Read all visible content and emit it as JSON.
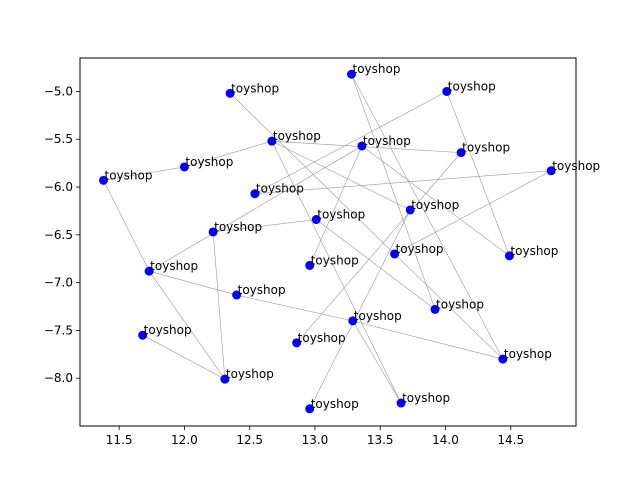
{
  "chart_data": {
    "type": "scatter",
    "title": "",
    "xlabel": "",
    "ylabel": "",
    "xlim": [
      11.2,
      15.0
    ],
    "ylim": [
      -8.5,
      -4.65
    ],
    "xticks": [
      11.5,
      12.0,
      12.5,
      13.0,
      13.5,
      14.0,
      14.5
    ],
    "xtick_labels": [
      "11.5",
      "12.0",
      "12.5",
      "13.0",
      "13.5",
      "14.0",
      "14.5"
    ],
    "yticks": [
      -8.0,
      -7.5,
      -7.0,
      -6.5,
      -6.0,
      -5.5,
      -5.0
    ],
    "ytick_labels": [
      "−8.0",
      "−7.5",
      "−7.0",
      "−6.5",
      "−6.0",
      "−5.5",
      "−5.0"
    ],
    "grid": false,
    "marker_color": "#0000ff",
    "edge_color": "#999999",
    "points": [
      {
        "x": 13.28,
        "y": -4.82,
        "label": "toyshop"
      },
      {
        "x": 12.35,
        "y": -5.02,
        "label": "toyshop"
      },
      {
        "x": 14.01,
        "y": -5.0,
        "label": "toyshop"
      },
      {
        "x": 12.67,
        "y": -5.52,
        "label": "toyshop"
      },
      {
        "x": 13.36,
        "y": -5.57,
        "label": "toyshop"
      },
      {
        "x": 14.12,
        "y": -5.64,
        "label": "toyshop"
      },
      {
        "x": 11.38,
        "y": -5.93,
        "label": "toyshop"
      },
      {
        "x": 12.0,
        "y": -5.79,
        "label": "toyshop"
      },
      {
        "x": 14.81,
        "y": -5.83,
        "label": "toyshop"
      },
      {
        "x": 12.54,
        "y": -6.07,
        "label": "toyshop"
      },
      {
        "x": 13.73,
        "y": -6.24,
        "label": "toyshop"
      },
      {
        "x": 13.01,
        "y": -6.34,
        "label": "toyshop"
      },
      {
        "x": 12.22,
        "y": -6.47,
        "label": "toyshop"
      },
      {
        "x": 13.61,
        "y": -6.7,
        "label": "toyshop"
      },
      {
        "x": 14.49,
        "y": -6.72,
        "label": "toyshop"
      },
      {
        "x": 12.96,
        "y": -6.82,
        "label": "toyshop"
      },
      {
        "x": 11.73,
        "y": -6.88,
        "label": "toyshop"
      },
      {
        "x": 12.4,
        "y": -7.13,
        "label": "toyshop"
      },
      {
        "x": 13.92,
        "y": -7.28,
        "label": "toyshop"
      },
      {
        "x": 13.29,
        "y": -7.4,
        "label": "toyshop"
      },
      {
        "x": 11.68,
        "y": -7.55,
        "label": "toyshop"
      },
      {
        "x": 12.86,
        "y": -7.63,
        "label": "toyshop"
      },
      {
        "x": 14.44,
        "y": -7.8,
        "label": "toyshop"
      },
      {
        "x": 12.31,
        "y": -8.01,
        "label": "toyshop"
      },
      {
        "x": 13.66,
        "y": -8.26,
        "label": "toyshop"
      },
      {
        "x": 12.96,
        "y": -8.32,
        "label": "toyshop"
      }
    ],
    "edges": [
      [
        6,
        7
      ],
      [
        6,
        16
      ],
      [
        7,
        3
      ],
      [
        3,
        5
      ],
      [
        3,
        10
      ],
      [
        3,
        24
      ],
      [
        1,
        13
      ],
      [
        13,
        8
      ],
      [
        0,
        22
      ],
      [
        0,
        18
      ],
      [
        2,
        14
      ],
      [
        9,
        2
      ],
      [
        4,
        14
      ],
      [
        4,
        15
      ],
      [
        5,
        21
      ],
      [
        10,
        25
      ],
      [
        11,
        12
      ],
      [
        11,
        18
      ],
      [
        12,
        23
      ],
      [
        16,
        23
      ],
      [
        16,
        17
      ],
      [
        17,
        19
      ],
      [
        19,
        24
      ],
      [
        20,
        23
      ],
      [
        9,
        8
      ],
      [
        16,
        4
      ],
      [
        13,
        22
      ],
      [
        19,
        22
      ]
    ]
  }
}
